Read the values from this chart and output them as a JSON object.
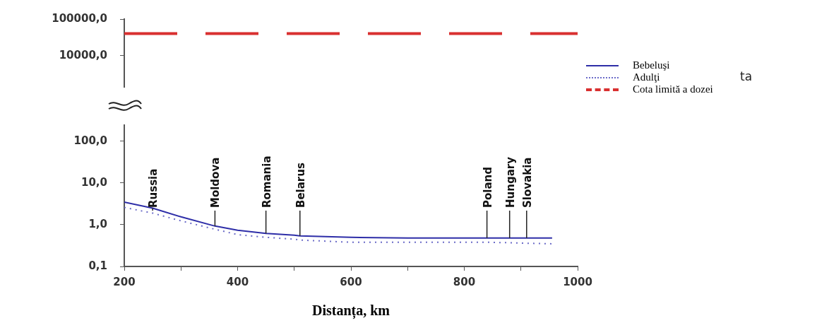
{
  "chart_data": [
    {
      "type": "line",
      "x": [
        200,
        1000
      ],
      "xlim": [
        200,
        1000
      ],
      "ylim": [
        1400,
        100000
      ],
      "yticks": [
        {
          "value": 10000,
          "label": "10000,0"
        },
        {
          "value": 100000,
          "label": "100000,0"
        }
      ],
      "log": "y",
      "tick_labels": "y",
      "grid": false,
      "legend": "right",
      "marker": "none",
      "series": [
        {
          "name": "Cota limită a dozei",
          "color": "#d93030",
          "line_style": "dashed",
          "values": [
            40000,
            40000
          ]
        }
      ],
      "annotations": [
        "ta"
      ]
    },
    {
      "type": "line",
      "xlabel": "Distanța, km",
      "x": [
        200,
        250,
        300,
        360,
        400,
        450,
        500,
        510,
        600,
        700,
        840,
        880,
        910,
        955
      ],
      "xlim": [
        200,
        1000
      ],
      "xticks": [
        200,
        {
          "value": 300,
          "label": null
        },
        400,
        {
          "value": 500,
          "label": null
        },
        600,
        {
          "value": 700,
          "label": null
        },
        800,
        {
          "value": 900,
          "label": null
        },
        1000
      ],
      "ylim": [
        0.1,
        245
      ],
      "yticks": [
        {
          "value": 0.1,
          "label": "0,1"
        },
        {
          "value": 1,
          "label": "1,0"
        },
        {
          "value": 10,
          "label": "10,0"
        },
        {
          "value": 100,
          "label": "100,0"
        }
      ],
      "log": "y",
      "grid": false,
      "legend": "right",
      "marker": "none",
      "series": [
        {
          "name": "Bebeluşi",
          "color": "#2e2ea8",
          "line_style": "solid",
          "values": [
            3.5,
            2.5,
            1.55,
            0.93,
            0.74,
            0.62,
            0.56,
            0.54,
            0.5,
            0.48,
            0.48,
            0.48,
            0.48,
            0.48
          ]
        },
        {
          "name": "Adulţi",
          "color": "#6b6bc8",
          "line_style": "dotted",
          "values": [
            2.6,
            1.9,
            1.24,
            0.78,
            0.58,
            0.5,
            0.45,
            0.43,
            0.38,
            0.38,
            0.38,
            0.37,
            0.36,
            0.35
          ]
        }
      ],
      "annotations": [
        {
          "text": "Russia",
          "x": 250,
          "y": 2.5
        },
        {
          "text": "Moldova",
          "x": 360,
          "y": 0.93
        },
        {
          "text": "Romania",
          "x": 450,
          "y": 0.62
        },
        {
          "text": "Belarus",
          "x": 510,
          "y": 0.54
        },
        {
          "text": "Poland",
          "x": 840,
          "y": 0.48
        },
        {
          "text": "Hungary",
          "x": 880,
          "y": 0.48
        },
        {
          "text": "Slovakia",
          "x": 910,
          "y": 0.48
        }
      ]
    }
  ]
}
